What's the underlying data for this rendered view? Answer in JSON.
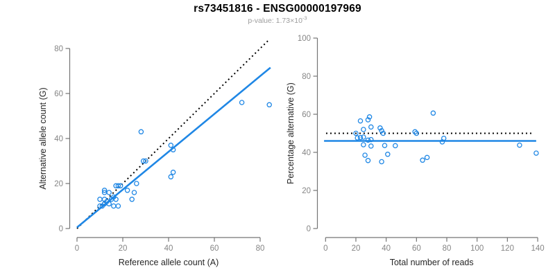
{
  "header": {
    "title": "rs73451816 - ENSG00000197969",
    "pvalue_prefix": "p-value: ",
    "pvalue_base": "1.73×10",
    "pvalue_exponent": "-3"
  },
  "colors": {
    "point_blue": "#1f87e5",
    "fit_line_blue": "#1f87e5",
    "dotted_black": "#000000",
    "axis_gray": "#747474",
    "tick_label_gray": "#858585",
    "axis_title_dark": "#262626",
    "title_black": "#000000",
    "subtitle_gray": "#9c9c9c"
  },
  "chart_data": [
    {
      "type": "scatter",
      "name": "allele-counts-panel",
      "xlabel": "Reference allele count (A)",
      "ylabel": "Alternative allele count (G)",
      "xlim": [
        0,
        80
      ],
      "ylim": [
        0,
        80
      ],
      "xticks": [
        0,
        20,
        40,
        60,
        80
      ],
      "yticks": [
        0,
        20,
        40,
        60,
        80
      ],
      "grid": false,
      "points": [
        [
          10,
          10
        ],
        [
          10,
          13
        ],
        [
          11,
          10
        ],
        [
          12,
          11
        ],
        [
          12,
          13
        ],
        [
          12,
          16
        ],
        [
          12,
          17
        ],
        [
          13,
          12
        ],
        [
          14,
          11
        ],
        [
          14,
          16
        ],
        [
          15,
          13
        ],
        [
          16,
          14
        ],
        [
          16,
          10
        ],
        [
          17,
          13
        ],
        [
          17,
          19
        ],
        [
          18,
          10
        ],
        [
          18,
          19
        ],
        [
          19,
          19
        ],
        [
          22,
          17
        ],
        [
          24,
          13
        ],
        [
          25,
          16
        ],
        [
          26,
          20
        ],
        [
          28,
          43
        ],
        [
          29,
          30
        ],
        [
          30,
          30
        ],
        [
          41,
          23
        ],
        [
          41,
          37
        ],
        [
          42,
          25
        ],
        [
          42,
          35
        ],
        [
          72,
          56
        ],
        [
          84,
          55
        ]
      ],
      "lines": [
        {
          "name": "identity-line",
          "style": "dotted",
          "color_key": "dotted_black",
          "from": [
            0,
            0
          ],
          "to": [
            84,
            84
          ]
        },
        {
          "name": "fit-line",
          "style": "solid",
          "color_key": "fit_line_blue",
          "from": [
            0,
            0.5
          ],
          "to": [
            84.5,
            71.5
          ]
        }
      ]
    },
    {
      "type": "scatter",
      "name": "percentage-panel",
      "xlabel": "Total number of reads",
      "ylabel": "Percentage alternative (G)",
      "xlim": [
        0,
        140
      ],
      "ylim": [
        0,
        100
      ],
      "xticks": [
        0,
        20,
        40,
        60,
        80,
        100,
        120,
        140
      ],
      "yticks": [
        0,
        20,
        40,
        60,
        80,
        100
      ],
      "grid": false,
      "points": [
        [
          20,
          50.0
        ],
        [
          23,
          56.5
        ],
        [
          21,
          47.6
        ],
        [
          23,
          47.8
        ],
        [
          25,
          52.0
        ],
        [
          28,
          57.1
        ],
        [
          29,
          58.6
        ],
        [
          25,
          48.0
        ],
        [
          25,
          44.0
        ],
        [
          30,
          53.3
        ],
        [
          28,
          46.4
        ],
        [
          30,
          46.7
        ],
        [
          26,
          38.5
        ],
        [
          30,
          43.3
        ],
        [
          36,
          52.8
        ],
        [
          28,
          35.7
        ],
        [
          37,
          51.4
        ],
        [
          38,
          50.0
        ],
        [
          39,
          43.6
        ],
        [
          37,
          35.1
        ],
        [
          41,
          39.0
        ],
        [
          46,
          43.5
        ],
        [
          71,
          60.6
        ],
        [
          59,
          50.8
        ],
        [
          60,
          50.0
        ],
        [
          64,
          35.9
        ],
        [
          78,
          47.4
        ],
        [
          67,
          37.3
        ],
        [
          77,
          45.5
        ],
        [
          128,
          43.8
        ],
        [
          139,
          39.6
        ]
      ],
      "lines": [
        {
          "name": "null-50pct-line",
          "style": "dotted",
          "color_key": "dotted_black",
          "from": [
            0.3,
            50
          ],
          "to": [
            137,
            50
          ]
        },
        {
          "name": "fit-line",
          "style": "solid",
          "color_key": "fit_line_blue",
          "from": [
            -1,
            46
          ],
          "to": [
            139,
            46
          ]
        }
      ]
    }
  ]
}
